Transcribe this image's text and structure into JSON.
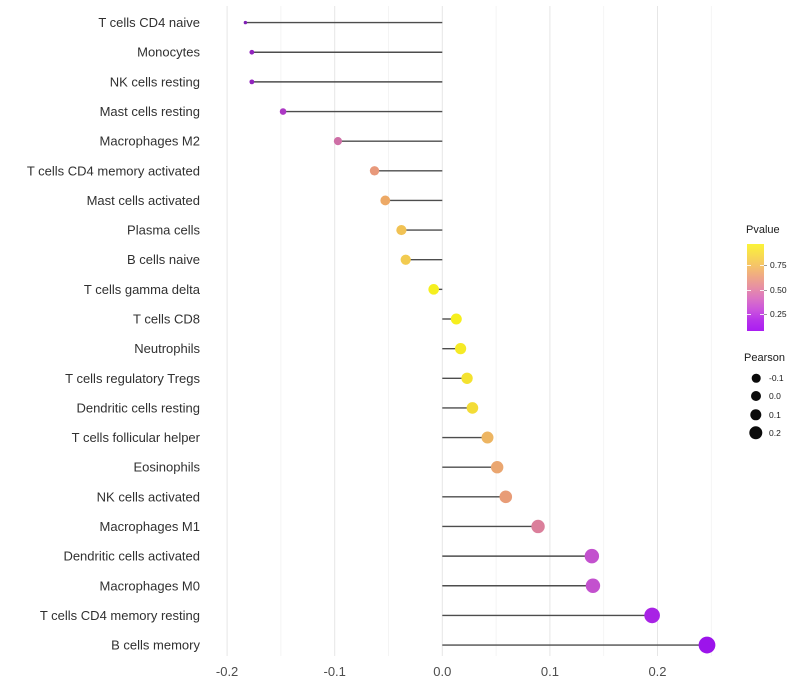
{
  "chart_data": {
    "type": "lollipop",
    "orientation": "horizontal",
    "title": "",
    "xlabel": "",
    "ylabel": "",
    "xlim": [
      -0.2045,
      0.2675
    ],
    "grid": "major and minor vertical gridlines, light gray, white background",
    "x_major_ticks": {
      "values": [
        -0.2,
        -0.1,
        0.0,
        0.1,
        0.2
      ],
      "labels": [
        "-0.2",
        "-0.1",
        "0.0",
        "0.1",
        "0.2"
      ]
    },
    "x_minor_ticks": [
      -0.15,
      -0.05,
      0.05,
      0.15,
      0.25
    ],
    "series_note": "each row: stem from 0 to pearson value; dot colored by Pvalue, sized by Pearson",
    "rows": [
      {
        "label": "T cells CD4 naive",
        "pearson": -0.183,
        "dot_color": "#7F1FB4",
        "dot_radius": 1.7
      },
      {
        "label": "Monocytes",
        "pearson": -0.177,
        "dot_color": "#9224BE",
        "dot_radius": 2.4
      },
      {
        "label": "NK cells resting",
        "pearson": -0.177,
        "dot_color": "#9224BE",
        "dot_radius": 2.4
      },
      {
        "label": "Mast cells resting",
        "pearson": -0.148,
        "dot_color": "#AC38C4",
        "dot_radius": 3.3
      },
      {
        "label": "Macrophages M2",
        "pearson": -0.097,
        "dot_color": "#CE6FA6",
        "dot_radius": 4.1
      },
      {
        "label": "T cells CD4 memory activated",
        "pearson": -0.063,
        "dot_color": "#E8997B",
        "dot_radius": 4.7
      },
      {
        "label": "Mast cells activated",
        "pearson": -0.053,
        "dot_color": "#EDA966",
        "dot_radius": 4.9
      },
      {
        "label": "Plasma cells",
        "pearson": -0.038,
        "dot_color": "#F1C254",
        "dot_radius": 5.1
      },
      {
        "label": "B cells naive",
        "pearson": -0.034,
        "dot_color": "#F2CB50",
        "dot_radius": 5.1
      },
      {
        "label": "T cells gamma delta",
        "pearson": -0.008,
        "dot_color": "#F5EF1F",
        "dot_radius": 5.3
      },
      {
        "label": "T cells CD8",
        "pearson": 0.013,
        "dot_color": "#F6EF1D",
        "dot_radius": 5.5
      },
      {
        "label": "Neutrophils",
        "pearson": 0.017,
        "dot_color": "#F5EA26",
        "dot_radius": 5.6
      },
      {
        "label": "T cells regulatory  Tregs",
        "pearson": 0.023,
        "dot_color": "#F4E22F",
        "dot_radius": 5.7
      },
      {
        "label": "Dendritic cells resting",
        "pearson": 0.028,
        "dot_color": "#F3DC37",
        "dot_radius": 5.8
      },
      {
        "label": "T cells follicular helper",
        "pearson": 0.042,
        "dot_color": "#EDB562",
        "dot_radius": 6.0
      },
      {
        "label": "Eosinophils",
        "pearson": 0.051,
        "dot_color": "#EAA670",
        "dot_radius": 6.2
      },
      {
        "label": "NK cells activated",
        "pearson": 0.059,
        "dot_color": "#E89C77",
        "dot_radius": 6.3
      },
      {
        "label": "Macrophages M1",
        "pearson": 0.089,
        "dot_color": "#DB7F9B",
        "dot_radius": 6.7
      },
      {
        "label": "Dendritic cells activated",
        "pearson": 0.139,
        "dot_color": "#C351CE",
        "dot_radius": 7.2
      },
      {
        "label": "Macrophages M0",
        "pearson": 0.14,
        "dot_color": "#C351CE",
        "dot_radius": 7.2
      },
      {
        "label": "T cells CD4 memory resting",
        "pearson": 0.195,
        "dot_color": "#A823E5",
        "dot_radius": 7.8
      },
      {
        "label": "B cells memory",
        "pearson": 0.246,
        "dot_color": "#9C14EB",
        "dot_radius": 8.4
      }
    ]
  },
  "legends": {
    "pvalue": {
      "title": "Pvalue",
      "tick_labels": [
        "0.75",
        "0.50",
        "0.25"
      ],
      "gradient_top_to_bottom": [
        "#FBF338",
        "#F8DC50",
        "#F5C369",
        "#EFA886",
        "#E78FA4",
        "#DB74C4",
        "#CC56DC",
        "#B733EA",
        "#AA1DF2"
      ]
    },
    "pearson": {
      "title": "Pearson",
      "items": [
        {
          "label": "-0.1",
          "dot_radius": 4.3
        },
        {
          "label": "0.0",
          "dot_radius": 5.0
        },
        {
          "label": "0.1",
          "dot_radius": 5.7
        },
        {
          "label": "0.2",
          "dot_radius": 6.7
        }
      ],
      "dot_color": "#0b0b0b"
    }
  },
  "colors": {
    "background": "#FFFFFF",
    "stem": "#4D4D4D",
    "grid_major": "#E6E6E6",
    "grid_minor": "#F2F2F2",
    "axis_label_text": "#303030",
    "axis_tick_text": "#4D4D4D"
  }
}
